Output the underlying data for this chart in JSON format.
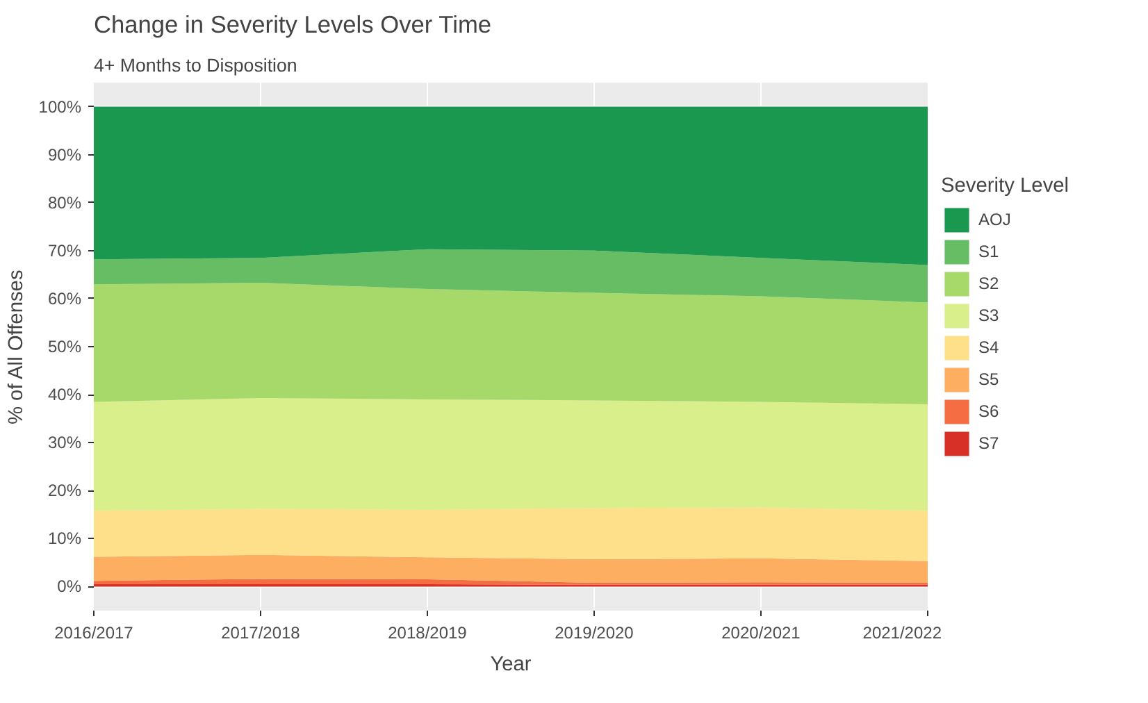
{
  "chart_data": {
    "type": "area",
    "stacked": true,
    "title": "Change in Severity Levels Over Time",
    "subtitle": "4+ Months to Disposition",
    "xlabel": "Year",
    "ylabel": "% of All Offenses",
    "legend_title": "Severity Level",
    "categories": [
      "2016/2017",
      "2017/2018",
      "2018/2019",
      "2019/2020",
      "2020/2021",
      "2021/2022"
    ],
    "ylim": [
      -5,
      105
    ],
    "yticks": [
      {
        "value": 0,
        "label": "0%"
      },
      {
        "value": 10,
        "label": "10%"
      },
      {
        "value": 20,
        "label": "20%"
      },
      {
        "value": 30,
        "label": "30%"
      },
      {
        "value": 40,
        "label": "40%"
      },
      {
        "value": 50,
        "label": "50%"
      },
      {
        "value": 60,
        "label": "60%"
      },
      {
        "value": 70,
        "label": "70%"
      },
      {
        "value": 80,
        "label": "80%"
      },
      {
        "value": 90,
        "label": "90%"
      },
      {
        "value": 100,
        "label": "100%"
      }
    ],
    "grid": true,
    "legend": "right",
    "series": [
      {
        "name": "S7",
        "color": "#d73027",
        "values": [
          0.5,
          0.5,
          0.5,
          0.4,
          0.4,
          0.4
        ]
      },
      {
        "name": "S6",
        "color": "#f46d43",
        "values": [
          0.7,
          1.1,
          1.0,
          0.4,
          0.5,
          0.4
        ]
      },
      {
        "name": "S5",
        "color": "#fdae61",
        "values": [
          5.0,
          5.0,
          4.6,
          4.9,
          5.0,
          4.5
        ]
      },
      {
        "name": "S4",
        "color": "#fee08b",
        "values": [
          9.6,
          9.6,
          9.9,
          10.7,
          10.6,
          10.5
        ]
      },
      {
        "name": "S3",
        "color": "#d9ef8b",
        "values": [
          22.7,
          23.1,
          23.0,
          22.4,
          22.0,
          22.2
        ]
      },
      {
        "name": "S2",
        "color": "#a6d96a",
        "values": [
          24.5,
          24.0,
          23.0,
          22.4,
          22.0,
          21.2
        ]
      },
      {
        "name": "S1",
        "color": "#66bd63",
        "values": [
          5.2,
          5.2,
          8.3,
          8.8,
          8.0,
          7.8
        ]
      },
      {
        "name": "AOJ",
        "color": "#1a9850",
        "values": [
          31.8,
          31.5,
          29.7,
          30.0,
          31.5,
          33.0
        ]
      }
    ]
  }
}
